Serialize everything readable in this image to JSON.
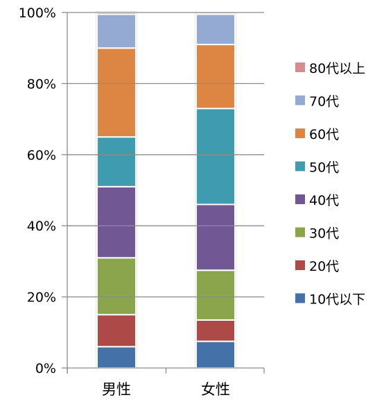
{
  "chart_data": {
    "type": "bar",
    "stacked": true,
    "percent": true,
    "categories": [
      "男性",
      "女性"
    ],
    "series": [
      {
        "name": "10代以下",
        "color": "#4472a8",
        "values": [
          6,
          7.5
        ]
      },
      {
        "name": "20代",
        "color": "#ad4a47",
        "values": [
          9,
          6
        ]
      },
      {
        "name": "30代",
        "color": "#8aa54c",
        "values": [
          16,
          14
        ]
      },
      {
        "name": "40代",
        "color": "#715894",
        "values": [
          20,
          18.5
        ]
      },
      {
        "name": "50代",
        "color": "#3f9bb0",
        "values": [
          14,
          27
        ]
      },
      {
        "name": "60代",
        "color": "#dd8543",
        "values": [
          25,
          18
        ]
      },
      {
        "name": "70代",
        "color": "#95aad2",
        "values": [
          9.5,
          8.5
        ]
      },
      {
        "name": "80代以上",
        "color": "#d58e8f",
        "values": [
          0.5,
          0
        ]
      }
    ],
    "yticks": [
      "0%",
      "20%",
      "40%",
      "60%",
      "80%",
      "100%"
    ],
    "ylim": [
      0,
      100
    ],
    "legend_position": "right",
    "grid": false
  }
}
